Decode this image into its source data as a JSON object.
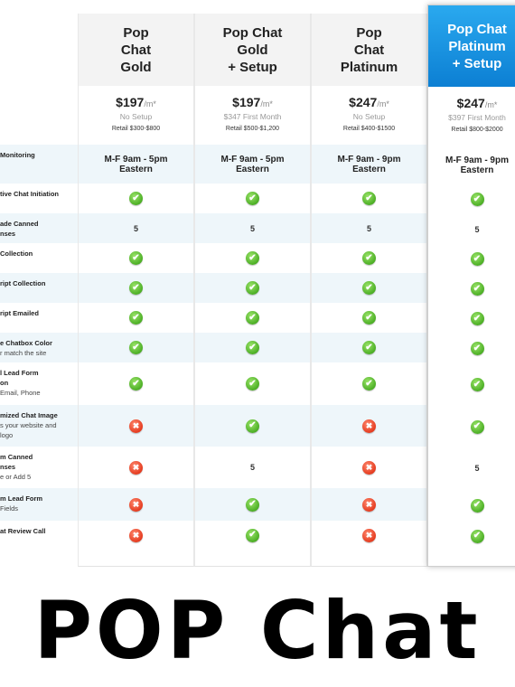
{
  "plans": [
    {
      "name": "Pop\nChat\nGold",
      "price": "$197",
      "per": "/m*",
      "setup": "No Setup",
      "retail": "Retail $300-$800"
    },
    {
      "name": "Pop Chat\nGold\n+ Setup",
      "price": "$197",
      "per": "/m*",
      "setup": "$347 First Month",
      "retail": "Retail $500-$1,200"
    },
    {
      "name": "Pop\nChat\nPlatinum",
      "price": "$247",
      "per": "/m*",
      "setup": "No Setup",
      "retail": "Retail $400-$1500"
    },
    {
      "name": "Pop Chat\nPlatinum\n+ Setup",
      "price": "$247",
      "per": "/m*",
      "setup": "$397 First Month",
      "retail": "Retail $800-$2000"
    }
  ],
  "features": [
    {
      "title": "Monitoring",
      "sub": ""
    },
    {
      "title": "tive Chat Initiation",
      "sub": ""
    },
    {
      "title": "ade Canned\nnses",
      "sub": ""
    },
    {
      "title": "Collection",
      "sub": ""
    },
    {
      "title": "ript Collection",
      "sub": ""
    },
    {
      "title": "ript Emailed",
      "sub": ""
    },
    {
      "title": "e Chatbox Color",
      "sub": "r match the site"
    },
    {
      "title": "l Lead Form\non",
      "sub": "Email, Phone"
    },
    {
      "title": "mized Chat Image",
      "sub": "s your website and\nlogo"
    },
    {
      "title": "m Canned\nnses",
      "sub": "e or Add 5"
    },
    {
      "title": "m Lead Form",
      "sub": "Fields"
    },
    {
      "title": "at Review Call",
      "sub": ""
    }
  ],
  "values": [
    [
      "M-F 9am - 5pm\nEastern",
      "M-F 9am - 5pm\nEastern",
      "M-F 9am - 9pm\nEastern",
      "M-F 9am - 9pm\nEastern"
    ],
    [
      "check",
      "check",
      "check",
      "check"
    ],
    [
      "5",
      "5",
      "5",
      "5"
    ],
    [
      "check",
      "check",
      "check",
      "check"
    ],
    [
      "check",
      "check",
      "check",
      "check"
    ],
    [
      "check",
      "check",
      "check",
      "check"
    ],
    [
      "check",
      "check",
      "check",
      "check"
    ],
    [
      "check",
      "check",
      "check",
      "check"
    ],
    [
      "cross",
      "check",
      "cross",
      "check"
    ],
    [
      "cross",
      "5",
      "cross",
      "5"
    ],
    [
      "cross",
      "check",
      "cross",
      "check"
    ],
    [
      "cross",
      "check",
      "cross",
      "check"
    ]
  ],
  "banner": "POP Chat",
  "colors": {
    "accent": "#1a96e6",
    "check": "#4caf25",
    "cross": "#e53b1f",
    "stripe": "#eef6fa"
  }
}
